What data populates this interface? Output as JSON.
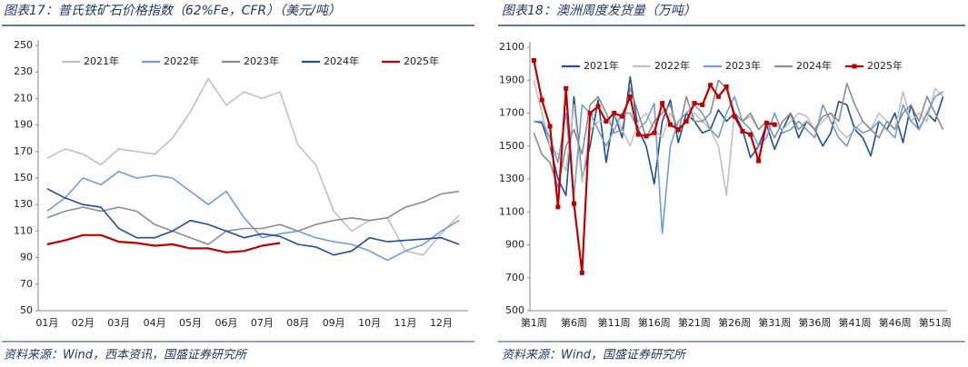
{
  "chart_data": [
    {
      "type": "line",
      "title": "图表17：普氏铁矿石价格指数（62%Fe，CFR）（美元/吨）",
      "source": "资料来源：Wind，西本资讯，国盛证券研究所",
      "categories": [
        "01月",
        null,
        "02月",
        null,
        "03月",
        null,
        "04月",
        null,
        "05月",
        null,
        "06月",
        null,
        "07月",
        null,
        "08月",
        null,
        "09月",
        null,
        "10月",
        null,
        "11月",
        null,
        "12月",
        null
      ],
      "ylim": [
        50,
        250
      ],
      "yticks": [
        50,
        70,
        90,
        110,
        130,
        150,
        170,
        190,
        210,
        230,
        250
      ],
      "grid": false,
      "series": [
        {
          "name": "2021年",
          "color": "#c0c0c0",
          "values": [
            165,
            172,
            168,
            160,
            172,
            170,
            168,
            180,
            200,
            225,
            205,
            215,
            210,
            215,
            175,
            160,
            125,
            110,
            118,
            120,
            95,
            92,
            108,
            122
          ]
        },
        {
          "name": "2022年",
          "color": "#6f9fd8",
          "values": [
            125,
            135,
            150,
            145,
            155,
            150,
            152,
            150,
            140,
            130,
            140,
            120,
            105,
            108,
            110,
            105,
            102,
            100,
            95,
            88,
            95,
            100,
            110,
            118
          ]
        },
        {
          "name": "2023年",
          "color": "#8c8c8c",
          "values": [
            120,
            125,
            128,
            125,
            128,
            125,
            115,
            110,
            105,
            100,
            110,
            112,
            112,
            115,
            110,
            115,
            118,
            120,
            118,
            120,
            128,
            132,
            138,
            140
          ]
        },
        {
          "name": "2024年",
          "color": "#1f4e9a",
          "values": [
            142,
            135,
            130,
            128,
            112,
            105,
            105,
            110,
            118,
            115,
            110,
            105,
            108,
            106,
            100,
            98,
            92,
            95,
            105,
            102,
            103,
            104,
            105,
            100
          ]
        },
        {
          "name": "2025年",
          "color": "#c00000",
          "values": [
            100,
            103,
            107,
            107,
            102,
            101,
            99,
            100,
            97,
            97,
            94,
            95,
            99,
            101,
            null,
            null,
            null,
            null,
            null,
            null,
            null,
            null,
            null,
            null
          ]
        }
      ]
    },
    {
      "type": "line",
      "title": "图表18：澳洲周度发货量（万吨）",
      "source": "资料来源：Wind，国盛证券研究所",
      "categories": [
        "第1周",
        null,
        null,
        null,
        null,
        "第6周",
        null,
        null,
        null,
        null,
        "第11周",
        null,
        null,
        null,
        null,
        "第16周",
        null,
        null,
        null,
        null,
        "第21周",
        null,
        null,
        null,
        null,
        "第26周",
        null,
        null,
        null,
        null,
        "第31周",
        null,
        null,
        null,
        null,
        "第36周",
        null,
        null,
        null,
        null,
        "第41周",
        null,
        null,
        null,
        null,
        "第46周",
        null,
        null,
        null,
        null,
        "第51周",
        null
      ],
      "ylim": [
        500,
        2100
      ],
      "yticks": [
        500,
        700,
        900,
        1100,
        1300,
        1500,
        1700,
        1900,
        2100
      ],
      "grid": false,
      "series": [
        {
          "name": "2021年",
          "color": "#1f4e9a",
          "values": [
            1650,
            1640,
            1500,
            1300,
            1200,
            1800,
            1300,
            1500,
            1780,
            1400,
            1700,
            1550,
            1920,
            1600,
            1500,
            1270,
            1650,
            1780,
            1520,
            1700,
            1650,
            1580,
            1600,
            1720,
            1650,
            1700,
            1600,
            1430,
            1500,
            1630,
            1480,
            1600,
            1700,
            1550,
            1650,
            1600,
            1500,
            1580,
            1770,
            1750,
            1600,
            1550,
            1440,
            1650,
            1600,
            1700,
            1520,
            1750,
            1600,
            1700,
            1650,
            1800
          ]
        },
        {
          "name": "2022年",
          "color": "#c0c0c0",
          "values": [
            1900,
            1700,
            1500,
            1450,
            1350,
            1750,
            1280,
            1600,
            1650,
            1650,
            1700,
            1600,
            1500,
            1650,
            1700,
            1600,
            1550,
            1700,
            1600,
            1650,
            1700,
            1650,
            1600,
            1500,
            1200,
            1700,
            1650,
            1680,
            1600,
            1650,
            1640,
            1600,
            1650,
            1700,
            1680,
            1600,
            1650,
            1700,
            1600,
            1550,
            1600,
            1650,
            1600,
            1700,
            1650,
            1600,
            1830,
            1650,
            1700,
            1650,
            1850,
            1800
          ]
        },
        {
          "name": "2023年",
          "color": "#6f9fd8",
          "values": [
            1650,
            1650,
            1550,
            1400,
            1700,
            1200,
            1750,
            1700,
            1600,
            1500,
            1600,
            1700,
            1700,
            1600,
            1650,
            1760,
            970,
            1500,
            1650,
            1700,
            1750,
            1700,
            1600,
            1550,
            1700,
            1800,
            1650,
            1600,
            1500,
            1550,
            1700,
            1580,
            1600,
            1650,
            1600,
            1550,
            1750,
            1650,
            1550,
            1500,
            1620,
            1580,
            1600,
            1650,
            1600,
            1550,
            1750,
            1650,
            1600,
            1700,
            1800,
            1830
          ]
        },
        {
          "name": "2024年",
          "color": "#8c8c8c",
          "values": [
            1580,
            1450,
            1400,
            1250,
            1500,
            1600,
            1450,
            1750,
            1800,
            1700,
            1580,
            1600,
            1850,
            1700,
            1550,
            1650,
            1700,
            1750,
            1580,
            1800,
            1650,
            1650,
            1700,
            1900,
            1850,
            1700,
            1650,
            1700,
            1600,
            1650,
            1550,
            1650,
            1700,
            1600,
            1650,
            1600,
            1680,
            1700,
            1650,
            1880,
            1750,
            1650,
            1600,
            1550,
            1650,
            1600,
            1700,
            1750,
            1650,
            1800,
            1700,
            1600
          ]
        },
        {
          "name": "2025年",
          "color": "#c00000",
          "marker": "square",
          "values": [
            2020,
            1780,
            1620,
            1130,
            1850,
            1150,
            730,
            1700,
            1740,
            1650,
            1700,
            1680,
            1800,
            1570,
            1560,
            1580,
            1760,
            1630,
            1600,
            1650,
            1760,
            1750,
            1870,
            1800,
            1860,
            1680,
            1590,
            1570,
            1410,
            1640,
            1630,
            null,
            null,
            null,
            null,
            null,
            null,
            null,
            null,
            null,
            null,
            null,
            null,
            null,
            null,
            null,
            null,
            null,
            null,
            null,
            null,
            null
          ]
        }
      ]
    }
  ]
}
